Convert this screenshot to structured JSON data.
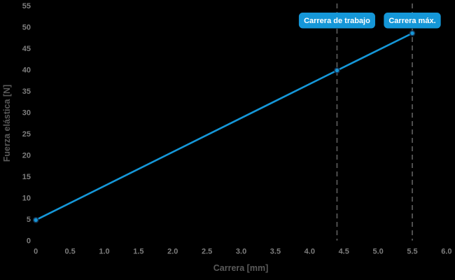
{
  "chart_data": {
    "type": "line",
    "title": "",
    "xlabel": "Carrera [mm]",
    "ylabel": "Fuerza elástica [N]",
    "xlim": [
      0,
      6.0
    ],
    "ylim": [
      0,
      55
    ],
    "xtick_labels": [
      "0",
      "0.5",
      "1.0",
      "1.5",
      "2.0",
      "2.5",
      "3.0",
      "3.5",
      "4.0",
      "4.5",
      "5.0",
      "5.5",
      "6.0"
    ],
    "ytick_labels": [
      "0",
      "5",
      "10",
      "15",
      "20",
      "25",
      "30",
      "35",
      "40",
      "45",
      "50",
      "55"
    ],
    "grid": false,
    "legend": "none",
    "background_color": "#000000",
    "series": [
      {
        "name": "fuerza-elastica-line",
        "x": [
          0,
          4.4,
          5.5
        ],
        "y": [
          4.8,
          39.8,
          48.5
        ],
        "color": "#1597d8",
        "marker": "circle",
        "marker_edge_color": "#16324f"
      }
    ],
    "annotations": [
      {
        "label": "Carrera de trabajo",
        "x": 4.4
      },
      {
        "label": "Carrera máx.",
        "x": 5.5
      }
    ],
    "annotation_style": {
      "badge_fill": "#1597d8",
      "badge_text_color": "#ffffff",
      "guide_line_color": "#4f4f4f",
      "guide_line_style": "dashed"
    },
    "tick_color": "#7d7d7d",
    "axis_title_color": "#5a5a5a"
  }
}
